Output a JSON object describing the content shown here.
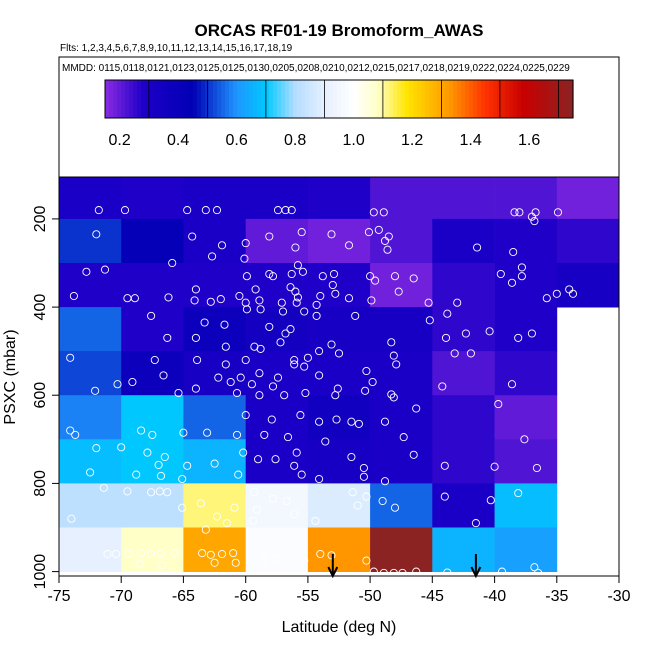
{
  "chart_data": {
    "type": "heatmap",
    "title": "ORCAS RF01-19 Bromoform_AWAS",
    "flights_label": "Flts: 1,2,3,4,5,6,7,8,9,10,11,12,13,14,15,16,17,18,19",
    "dates_label": "MMDD: 0115,0118,0121,0123,0125,0125,0130,0205,0208,0210,0212,0215,0217,0218,0219,0222,0224,0225,0229",
    "xlabel": "Latitude (deg N)",
    "ylabel": "PSXC (mbar)",
    "xlim": [
      -75,
      -30
    ],
    "ylim": [
      1010,
      105
    ],
    "x_ticks": [
      -75,
      -70,
      -65,
      -60,
      -55,
      -50,
      -45,
      -40,
      -35,
      -30
    ],
    "y_ticks": [
      200,
      400,
      600,
      800,
      1000
    ],
    "colorbar": {
      "range": [
        0.15,
        1.75
      ],
      "ticks": [
        0.2,
        0.4,
        0.6,
        0.8,
        1.0,
        1.2,
        1.4,
        1.6
      ],
      "tick_labels": [
        "0.2",
        "0.4",
        "0.6",
        "0.8",
        "1.0",
        "1.2",
        "1.4",
        "1.6"
      ],
      "stops": [
        {
          "value": 0.15,
          "color": "#8a2be2"
        },
        {
          "value": 0.28,
          "color": "#1e00c8"
        },
        {
          "value": 0.45,
          "color": "#0000b4"
        },
        {
          "value": 0.6,
          "color": "#1e96ff"
        },
        {
          "value": 0.7,
          "color": "#00c8ff"
        },
        {
          "value": 0.8,
          "color": "#b4dcff"
        },
        {
          "value": 0.9,
          "color": "#e6f0ff"
        },
        {
          "value": 1.0,
          "color": "#ffffff"
        },
        {
          "value": 1.08,
          "color": "#ffffc8"
        },
        {
          "value": 1.18,
          "color": "#ffe600"
        },
        {
          "value": 1.33,
          "color": "#ff9600"
        },
        {
          "value": 1.45,
          "color": "#ff3200"
        },
        {
          "value": 1.58,
          "color": "#c80000"
        },
        {
          "value": 1.75,
          "color": "#8b2323"
        }
      ]
    },
    "lat_bins": [
      -75,
      -70,
      -65,
      -60,
      -55,
      -50,
      -45,
      -40,
      -35,
      -30
    ],
    "pres_bins": [
      100,
      200,
      300,
      400,
      500,
      600,
      700,
      800,
      900,
      1000
    ],
    "cells": [
      [
        0.3,
        0.28,
        0.3,
        0.3,
        0.28,
        0.22,
        0.22,
        0.22,
        0.18
      ],
      [
        0.5,
        0.42,
        0.3,
        0.2,
        0.18,
        0.22,
        0.3,
        0.28,
        0.26
      ],
      [
        0.28,
        0.28,
        0.28,
        0.28,
        0.28,
        0.18,
        0.26,
        0.28,
        0.32
      ],
      [
        0.55,
        0.28,
        0.38,
        0.34,
        0.32,
        0.32,
        0.26,
        0.28,
        null
      ],
      [
        0.52,
        0.38,
        0.32,
        0.3,
        0.3,
        0.3,
        0.22,
        0.26,
        null
      ],
      [
        0.58,
        0.7,
        0.55,
        0.3,
        0.35,
        0.3,
        0.26,
        0.2,
        null
      ],
      [
        0.68,
        0.7,
        0.66,
        0.3,
        0.32,
        0.3,
        0.26,
        0.22,
        null
      ],
      [
        0.82,
        0.82,
        1.12,
        0.95,
        0.88,
        0.55,
        0.3,
        0.68,
        null
      ],
      [
        0.9,
        1.08,
        1.3,
        0.98,
        1.33,
        1.75,
        0.66,
        0.62,
        null
      ]
    ],
    "arrows": [
      {
        "lat": -53.0,
        "label": ""
      },
      {
        "lat": -41.5,
        "label": ""
      }
    ],
    "samples": [
      {
        "lat": -71.8,
        "p": 180
      },
      {
        "lat": -69.7,
        "p": 180
      },
      {
        "lat": -64.7,
        "p": 180
      },
      {
        "lat": -63.2,
        "p": 180
      },
      {
        "lat": -62.3,
        "p": 180
      },
      {
        "lat": -57.4,
        "p": 180
      },
      {
        "lat": -56.8,
        "p": 180
      },
      {
        "lat": -56.3,
        "p": 180
      },
      {
        "lat": -49.7,
        "p": 185
      },
      {
        "lat": -48.9,
        "p": 185
      },
      {
        "lat": -38.4,
        "p": 185
      },
      {
        "lat": -38.0,
        "p": 185
      },
      {
        "lat": -36.7,
        "p": 185
      },
      {
        "lat": -37.0,
        "p": 195
      },
      {
        "lat": -34.9,
        "p": 185
      },
      {
        "lat": -36.8,
        "p": 205
      },
      {
        "lat": -49.3,
        "p": 225
      },
      {
        "lat": -50.1,
        "p": 230
      },
      {
        "lat": -48.5,
        "p": 240
      },
      {
        "lat": -55.5,
        "p": 230
      },
      {
        "lat": -53.1,
        "p": 235
      },
      {
        "lat": -72.0,
        "p": 235
      },
      {
        "lat": -64.3,
        "p": 240
      },
      {
        "lat": -58.1,
        "p": 240
      },
      {
        "lat": -48.8,
        "p": 250
      },
      {
        "lat": -61.9,
        "p": 260
      },
      {
        "lat": -60.0,
        "p": 255
      },
      {
        "lat": -56.0,
        "p": 265
      },
      {
        "lat": -51.7,
        "p": 260
      },
      {
        "lat": -48.6,
        "p": 270
      },
      {
        "lat": -41.4,
        "p": 265
      },
      {
        "lat": -38.5,
        "p": 275
      },
      {
        "lat": -62.7,
        "p": 285
      },
      {
        "lat": -60.1,
        "p": 290
      },
      {
        "lat": -65.9,
        "p": 300
      },
      {
        "lat": -55.8,
        "p": 305
      },
      {
        "lat": -37.8,
        "p": 310
      },
      {
        "lat": -71.3,
        "p": 315
      },
      {
        "lat": -72.8,
        "p": 320
      },
      {
        "lat": -55.4,
        "p": 320
      },
      {
        "lat": -56.3,
        "p": 325
      },
      {
        "lat": -58.1,
        "p": 325
      },
      {
        "lat": -57.8,
        "p": 330
      },
      {
        "lat": -52.9,
        "p": 325
      },
      {
        "lat": -53.8,
        "p": 330
      },
      {
        "lat": -59.9,
        "p": 330
      },
      {
        "lat": -50.0,
        "p": 330
      },
      {
        "lat": -49.6,
        "p": 340
      },
      {
        "lat": -48.0,
        "p": 330
      },
      {
        "lat": -46.5,
        "p": 335
      },
      {
        "lat": -39.5,
        "p": 325
      },
      {
        "lat": -37.8,
        "p": 330
      },
      {
        "lat": -38.6,
        "p": 345
      },
      {
        "lat": -53.0,
        "p": 350
      },
      {
        "lat": -56.4,
        "p": 355
      },
      {
        "lat": -47.7,
        "p": 365
      },
      {
        "lat": -52.8,
        "p": 370
      },
      {
        "lat": -64.0,
        "p": 360
      },
      {
        "lat": -59.2,
        "p": 360
      },
      {
        "lat": -56.0,
        "p": 365
      },
      {
        "lat": -54.0,
        "p": 375
      },
      {
        "lat": -55.8,
        "p": 378
      },
      {
        "lat": -51.7,
        "p": 380
      },
      {
        "lat": -34.0,
        "p": 360
      },
      {
        "lat": -35.0,
        "p": 370
      },
      {
        "lat": -33.7,
        "p": 370
      },
      {
        "lat": -60.5,
        "p": 375
      },
      {
        "lat": -73.8,
        "p": 375
      },
      {
        "lat": -69.5,
        "p": 380
      },
      {
        "lat": -68.9,
        "p": 380
      },
      {
        "lat": -66.2,
        "p": 378
      },
      {
        "lat": -64.1,
        "p": 385
      },
      {
        "lat": -62.8,
        "p": 388
      },
      {
        "lat": -62.0,
        "p": 382
      },
      {
        "lat": -60.0,
        "p": 390
      },
      {
        "lat": -58.9,
        "p": 385
      },
      {
        "lat": -57.1,
        "p": 390
      },
      {
        "lat": -55.9,
        "p": 390
      },
      {
        "lat": -54.3,
        "p": 395
      },
      {
        "lat": -49.9,
        "p": 385
      },
      {
        "lat": -45.3,
        "p": 390
      },
      {
        "lat": -43.0,
        "p": 390
      },
      {
        "lat": -35.8,
        "p": 380
      },
      {
        "lat": -59.9,
        "p": 405
      },
      {
        "lat": -58.8,
        "p": 405
      },
      {
        "lat": -57.0,
        "p": 410
      },
      {
        "lat": -55.3,
        "p": 410
      },
      {
        "lat": -54.3,
        "p": 420
      },
      {
        "lat": -51.2,
        "p": 420
      },
      {
        "lat": -43.8,
        "p": 415
      },
      {
        "lat": -45.2,
        "p": 430
      },
      {
        "lat": -67.6,
        "p": 420
      },
      {
        "lat": -63.3,
        "p": 435
      },
      {
        "lat": -61.7,
        "p": 440
      },
      {
        "lat": -58.1,
        "p": 445
      },
      {
        "lat": -56.4,
        "p": 450
      },
      {
        "lat": -56.8,
        "p": 460
      },
      {
        "lat": -40.4,
        "p": 455
      },
      {
        "lat": -42.3,
        "p": 460
      },
      {
        "lat": -43.9,
        "p": 470
      },
      {
        "lat": -37.0,
        "p": 460
      },
      {
        "lat": -38.1,
        "p": 470
      },
      {
        "lat": -66.3,
        "p": 470
      },
      {
        "lat": -64.0,
        "p": 470
      },
      {
        "lat": -57.2,
        "p": 480
      },
      {
        "lat": -53.1,
        "p": 485
      },
      {
        "lat": -48.3,
        "p": 480
      },
      {
        "lat": -61.6,
        "p": 490
      },
      {
        "lat": -58.8,
        "p": 495
      },
      {
        "lat": -59.3,
        "p": 490
      },
      {
        "lat": -54.1,
        "p": 500
      },
      {
        "lat": -55.0,
        "p": 515
      },
      {
        "lat": -52.5,
        "p": 505
      },
      {
        "lat": -48.1,
        "p": 510
      },
      {
        "lat": -47.9,
        "p": 530
      },
      {
        "lat": -43.2,
        "p": 505
      },
      {
        "lat": -41.9,
        "p": 505
      },
      {
        "lat": -74.1,
        "p": 515
      },
      {
        "lat": -67.3,
        "p": 520
      },
      {
        "lat": -63.9,
        "p": 520
      },
      {
        "lat": -61.6,
        "p": 530
      },
      {
        "lat": -60.0,
        "p": 520
      },
      {
        "lat": -56.1,
        "p": 520
      },
      {
        "lat": -56.1,
        "p": 530
      },
      {
        "lat": -55.3,
        "p": 535
      },
      {
        "lat": -58.9,
        "p": 550
      },
      {
        "lat": -57.4,
        "p": 560
      },
      {
        "lat": -54.1,
        "p": 555
      },
      {
        "lat": -50.3,
        "p": 545
      },
      {
        "lat": -49.8,
        "p": 570
      },
      {
        "lat": -66.6,
        "p": 555
      },
      {
        "lat": -62.2,
        "p": 560
      },
      {
        "lat": -60.4,
        "p": 560
      },
      {
        "lat": -61.2,
        "p": 570
      },
      {
        "lat": -69.1,
        "p": 570
      },
      {
        "lat": -70.3,
        "p": 575
      },
      {
        "lat": -59.5,
        "p": 575
      },
      {
        "lat": -57.8,
        "p": 580
      },
      {
        "lat": -52.6,
        "p": 585
      },
      {
        "lat": -55.2,
        "p": 595
      },
      {
        "lat": -50.4,
        "p": 590
      },
      {
        "lat": -48.3,
        "p": 598
      },
      {
        "lat": -44.2,
        "p": 580
      },
      {
        "lat": -38.6,
        "p": 575
      },
      {
        "lat": -72.1,
        "p": 590
      },
      {
        "lat": -64.0,
        "p": 585
      },
      {
        "lat": -65.4,
        "p": 595
      },
      {
        "lat": -60.7,
        "p": 595
      },
      {
        "lat": -58.9,
        "p": 600
      },
      {
        "lat": -56.9,
        "p": 600
      },
      {
        "lat": -52.8,
        "p": 600
      },
      {
        "lat": -48.1,
        "p": 605
      },
      {
        "lat": -46.3,
        "p": 630
      },
      {
        "lat": -39.7,
        "p": 620
      },
      {
        "lat": -60.0,
        "p": 645
      },
      {
        "lat": -57.9,
        "p": 655
      },
      {
        "lat": -55.6,
        "p": 645
      },
      {
        "lat": -54.1,
        "p": 660
      },
      {
        "lat": -52.7,
        "p": 655
      },
      {
        "lat": -51.5,
        "p": 660
      },
      {
        "lat": -48.8,
        "p": 660
      },
      {
        "lat": -50.9,
        "p": 665
      },
      {
        "lat": -74.1,
        "p": 680
      },
      {
        "lat": -73.7,
        "p": 690
      },
      {
        "lat": -68.4,
        "p": 680
      },
      {
        "lat": -65.0,
        "p": 685
      },
      {
        "lat": -67.5,
        "p": 690
      },
      {
        "lat": -63.1,
        "p": 685
      },
      {
        "lat": -60.7,
        "p": 690
      },
      {
        "lat": -58.5,
        "p": 690
      },
      {
        "lat": -56.6,
        "p": 695
      },
      {
        "lat": -53.6,
        "p": 705
      },
      {
        "lat": -47.3,
        "p": 695
      },
      {
        "lat": -37.6,
        "p": 700
      },
      {
        "lat": -72.0,
        "p": 720
      },
      {
        "lat": -70.0,
        "p": 718
      },
      {
        "lat": -67.9,
        "p": 730
      },
      {
        "lat": -66.5,
        "p": 740
      },
      {
        "lat": -60.2,
        "p": 730
      },
      {
        "lat": -59.0,
        "p": 745
      },
      {
        "lat": -55.9,
        "p": 730
      },
      {
        "lat": -57.6,
        "p": 745
      },
      {
        "lat": -51.5,
        "p": 740
      },
      {
        "lat": -46.5,
        "p": 735
      },
      {
        "lat": -62.5,
        "p": 755
      },
      {
        "lat": -64.7,
        "p": 760
      },
      {
        "lat": -67.0,
        "p": 758
      },
      {
        "lat": -56.1,
        "p": 760
      },
      {
        "lat": -50.5,
        "p": 765
      },
      {
        "lat": -44.0,
        "p": 760
      },
      {
        "lat": -40.0,
        "p": 762
      },
      {
        "lat": -36.6,
        "p": 765
      },
      {
        "lat": -72.5,
        "p": 775
      },
      {
        "lat": -68.8,
        "p": 780
      },
      {
        "lat": -66.8,
        "p": 783
      },
      {
        "lat": -65.1,
        "p": 790
      },
      {
        "lat": -60.6,
        "p": 780
      },
      {
        "lat": -55.5,
        "p": 780
      },
      {
        "lat": -54.1,
        "p": 790
      },
      {
        "lat": -50.5,
        "p": 785
      },
      {
        "lat": -48.8,
        "p": 795
      },
      {
        "lat": -71.4,
        "p": 810
      },
      {
        "lat": -69.5,
        "p": 818
      },
      {
        "lat": -67.6,
        "p": 820
      },
      {
        "lat": -66.9,
        "p": 818
      },
      {
        "lat": -66.3,
        "p": 820
      },
      {
        "lat": -59.3,
        "p": 820
      },
      {
        "lat": -57.8,
        "p": 835
      },
      {
        "lat": -56.7,
        "p": 840
      },
      {
        "lat": -51.4,
        "p": 820
      },
      {
        "lat": -50.3,
        "p": 830
      },
      {
        "lat": -49.0,
        "p": 840
      },
      {
        "lat": -48.0,
        "p": 855
      },
      {
        "lat": -51.0,
        "p": 850
      },
      {
        "lat": -44.0,
        "p": 830
      },
      {
        "lat": -40.3,
        "p": 838
      },
      {
        "lat": -38.1,
        "p": 822
      },
      {
        "lat": -63.6,
        "p": 845
      },
      {
        "lat": -65.1,
        "p": 855
      },
      {
        "lat": -60.9,
        "p": 855
      },
      {
        "lat": -59.1,
        "p": 860
      },
      {
        "lat": -62.3,
        "p": 875
      },
      {
        "lat": -74.0,
        "p": 880
      },
      {
        "lat": -56.1,
        "p": 870
      },
      {
        "lat": -54.4,
        "p": 885
      },
      {
        "lat": -59.4,
        "p": 885
      },
      {
        "lat": -61.5,
        "p": 890
      },
      {
        "lat": -41.5,
        "p": 890
      },
      {
        "lat": -63.2,
        "p": 905
      },
      {
        "lat": -71.1,
        "p": 960
      },
      {
        "lat": -70.4,
        "p": 960
      },
      {
        "lat": -69.4,
        "p": 960
      },
      {
        "lat": -68.4,
        "p": 958
      },
      {
        "lat": -67.6,
        "p": 960
      },
      {
        "lat": -66.8,
        "p": 958
      },
      {
        "lat": -65.7,
        "p": 958
      },
      {
        "lat": -63.5,
        "p": 958
      },
      {
        "lat": -62.8,
        "p": 962
      },
      {
        "lat": -61.9,
        "p": 960
      },
      {
        "lat": -61.0,
        "p": 958
      },
      {
        "lat": -54.0,
        "p": 960
      },
      {
        "lat": -53.1,
        "p": 963
      },
      {
        "lat": -50.3,
        "p": 975
      },
      {
        "lat": -49.7,
        "p": 1000
      },
      {
        "lat": -48.9,
        "p": 1003
      },
      {
        "lat": -48.1,
        "p": 1003
      },
      {
        "lat": -47.4,
        "p": 1003
      },
      {
        "lat": -46.3,
        "p": 1000
      },
      {
        "lat": -43.8,
        "p": 1002
      },
      {
        "lat": -39.4,
        "p": 1000
      },
      {
        "lat": -36.8,
        "p": 990
      },
      {
        "lat": -36.5,
        "p": 1003
      },
      {
        "lat": -57.5,
        "p": 970
      },
      {
        "lat": -58.5,
        "p": 970
      },
      {
        "lat": -55.3,
        "p": 975
      },
      {
        "lat": -60.8,
        "p": 980
      },
      {
        "lat": -62.5,
        "p": 980
      },
      {
        "lat": -66.7,
        "p": 985
      },
      {
        "lat": -68.5,
        "p": 983
      }
    ]
  }
}
